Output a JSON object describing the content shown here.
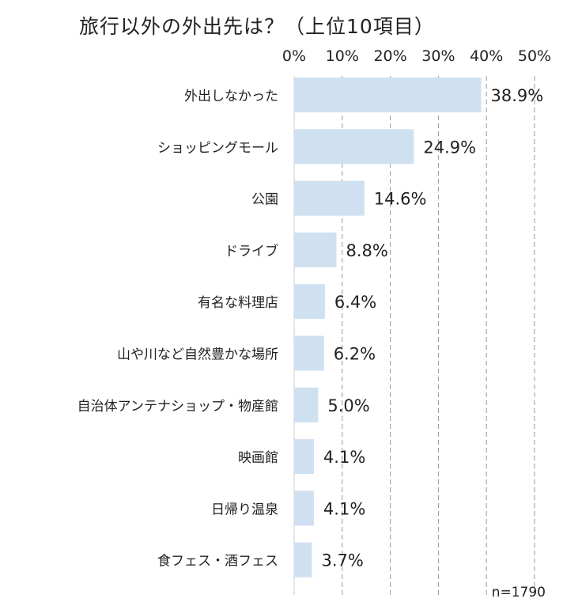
{
  "chart_data": {
    "type": "bar",
    "orientation": "horizontal",
    "title": "旅行以外の外出先は？（上位10項目）",
    "categories": [
      "外出しなかった",
      "ショッピングモール",
      "公園",
      "ドライブ",
      "有名な料理店",
      "山や川など自然豊かな場所",
      "自治体アンテナショップ・物産館",
      "映画館",
      "日帰り温泉",
      "食フェス・酒フェス"
    ],
    "values": [
      38.9,
      24.9,
      14.6,
      8.8,
      6.4,
      6.2,
      5.0,
      4.1,
      4.1,
      3.7
    ],
    "value_labels": [
      "38.9%",
      "24.9%",
      "14.6%",
      "8.8%",
      "6.4%",
      "6.2%",
      "5.0%",
      "4.1%",
      "4.1%",
      "3.7%"
    ],
    "xlim": [
      0,
      50
    ],
    "x_ticks": [
      0,
      10,
      20,
      30,
      40,
      50
    ],
    "x_tick_labels": [
      "0%",
      "10%",
      "20%",
      "30%",
      "40%",
      "50%"
    ],
    "x_axis_position": "top",
    "grid": "vertical dashed",
    "legend": "none",
    "annotation": "n=1790",
    "bar_color": "#cfe0f1",
    "grid_color": "#999999",
    "axis_color": "#cccccc"
  }
}
